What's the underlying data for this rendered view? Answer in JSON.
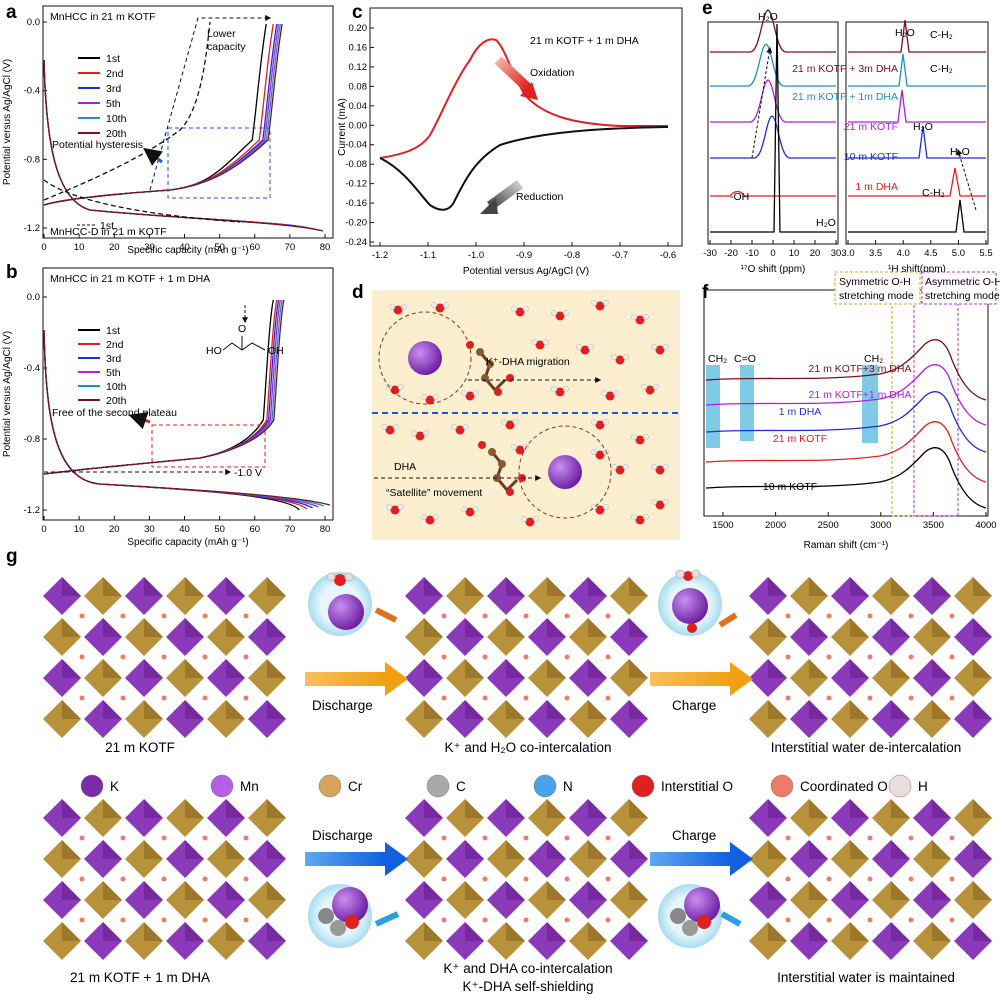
{
  "panels": {
    "a": {
      "letter": "a",
      "top_label": "MnHCC in 21 m KOTF",
      "bottom_label": "MnHCC-D in 21 m KOTF",
      "legend": [
        "1st",
        "2nd",
        "3rd",
        "5th",
        "10th",
        "20th"
      ],
      "annotations": {
        "lower_capacity": "Lower\ncapacity",
        "hysteresis": "Potential hysteresis",
        "first_dashed": "1st"
      },
      "xlabel": "Specific capacity (mAh g⁻¹)",
      "ylabel": "Potential versus Ag/AgCl (V)",
      "xticks": [
        "0",
        "10",
        "20",
        "30",
        "40",
        "50",
        "60",
        "70",
        "80"
      ],
      "yticks": [
        "0.0",
        "-0.4",
        "-0.8",
        "-1.2"
      ]
    },
    "b": {
      "letter": "b",
      "top_label": "MnHCC in 21 m KOTF + 1 m DHA",
      "legend": [
        "1st",
        "2nd",
        "3rd",
        "5th",
        "10th",
        "20th"
      ],
      "annotations": {
        "free_plateau": "Free of the second plateau",
        "minus1v": "-1.0 V"
      },
      "molecule_labels": [
        "HO",
        "O",
        "OH"
      ],
      "xlabel": "Specific capacity (mAh g⁻¹)",
      "ylabel": "Potential versus Ag/AgCl (V)",
      "xticks": [
        "0",
        "10",
        "20",
        "30",
        "40",
        "50",
        "60",
        "70",
        "80"
      ],
      "yticks": [
        "0.0",
        "-0.4",
        "-0.8",
        "-1.2"
      ]
    },
    "c": {
      "letter": "c",
      "label": "21 m KOTF + 1 m DHA",
      "oxidation": "Oxidation",
      "reduction": "Reduction",
      "xlabel": "Potential versus Ag/AgCl (V)",
      "ylabel": "Current (mA)",
      "xticks": [
        "-1.2",
        "-1.1",
        "-1.0",
        "-0.9",
        "-0.8",
        "-0.7",
        "-0.6"
      ],
      "yticks": [
        "0.20",
        "0.16",
        "0.12",
        "0.08",
        "0.04",
        "0.00",
        "-0.04",
        "-0.08",
        "-0.12",
        "-0.16",
        "-0.20",
        "-0.24"
      ]
    },
    "d": {
      "letter": "d",
      "migration": "K⁺-DHA migration",
      "dha": "DHA",
      "satellite": "“Satellite” movement"
    },
    "e": {
      "letter": "e",
      "labels": [
        "21 m KOTF + 3m DHA",
        "21 m KOTF + 1m DHA",
        "21 m KOTF",
        "10 m KOTF",
        "1 m DHA"
      ],
      "peaks": {
        "h2o_left": "H₂O",
        "oh": "-OH",
        "h2o_bottom": "H₂O",
        "h2o_right1": "H₂O",
        "h2o_right2": "H₂O",
        "h2o_right3": "H₂O",
        "ch_1": "C-H₂",
        "ch_2": "C-H₂",
        "ch_3": "C-H₂"
      },
      "xlabel_left": "¹⁷O shift (ppm)",
      "xlabel_right": "¹H shift(ppm)",
      "xticks_left": [
        "-30",
        "-20",
        "-10",
        "0",
        "10",
        "20",
        "30"
      ],
      "xticks_right": [
        "3.0",
        "3.5",
        "4.0",
        "4.5",
        "5.0",
        "5.5"
      ]
    },
    "f": {
      "letter": "f",
      "labels": [
        "21 m KOTF+3 m DHA",
        "21 m KOTF+1 m DHA",
        "1 m DHA",
        "21 m KOTF",
        "10 m KOTF"
      ],
      "bands": {
        "ch2_left": "CH₂",
        "co": "C=O",
        "ch2_right": "CH₂"
      },
      "symmetric": "Symmetric O-H\nstretching mode",
      "asymmetric": "Asymmetric O-H\nstretching mode",
      "xlabel": "Raman shift (cm⁻¹)",
      "xticks": [
        "1500",
        "2000",
        "2500",
        "3000",
        "3500",
        "4000"
      ]
    },
    "g": {
      "letter": "g",
      "row1": {
        "left": "21 m KOTF",
        "mid": "K⁺ and H₂O co-intercalation",
        "right": "Interstitial water de-intercalation",
        "arrow1": "Discharge",
        "arrow2": "Charge"
      },
      "row2": {
        "left": "21 m KOTF + 1 m DHA",
        "mid1": "K⁺ and DHA co-intercalation",
        "mid2": "K⁺-DHA self-shielding",
        "right": "Interstitial water is maintained",
        "arrow1": "Discharge",
        "arrow2": "Charge"
      },
      "legend": [
        {
          "label": "K",
          "color": "#7a2ca6"
        },
        {
          "label": "Mn",
          "color": "#b55ee6"
        },
        {
          "label": "Cr",
          "color": "#d4a45a"
        },
        {
          "label": "C",
          "color": "#a9a9a9"
        },
        {
          "label": "N",
          "color": "#4aa3e8"
        },
        {
          "label": "Interstitial O",
          "color": "#e02020"
        },
        {
          "label": "Coordinated O",
          "color": "#f07a6a"
        },
        {
          "label": "H",
          "color": "#e8dede"
        }
      ]
    }
  },
  "colors": {
    "c1": "#000000",
    "c2": "#e02020",
    "c3": "#1f2fd0",
    "c5": "#b020d8",
    "c10": "#1e90c8",
    "c20": "#7a1020"
  }
}
